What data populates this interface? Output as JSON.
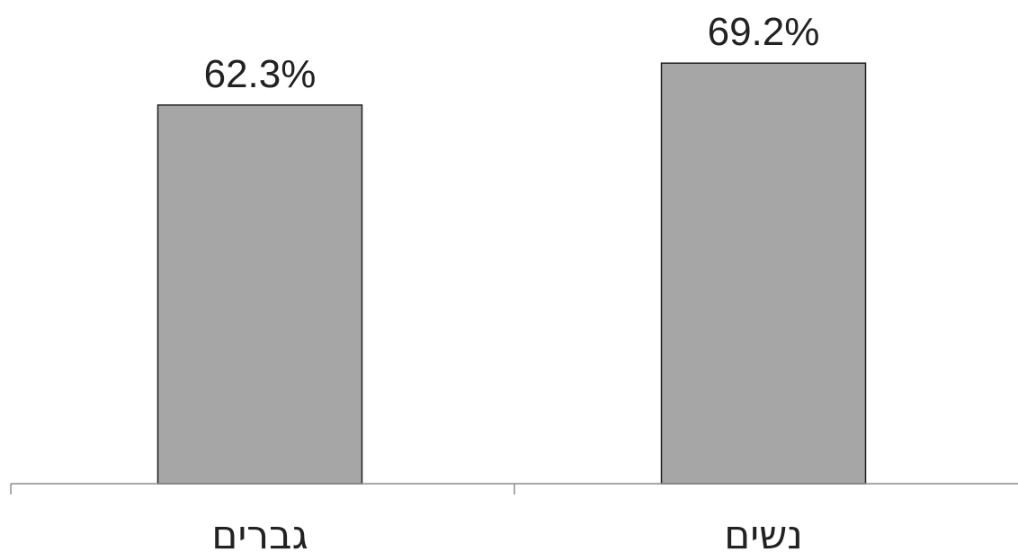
{
  "chart_data": {
    "type": "bar",
    "categories": [
      "גברים",
      "נשים"
    ],
    "values": [
      62.3,
      69.2
    ],
    "value_labels": [
      "62.3%",
      "69.2%"
    ],
    "title": "",
    "xlabel": "",
    "ylabel": "",
    "grid": false,
    "legend": "none",
    "bar_color": "#a6a6a6",
    "bar_edge_color": "#1f1f1f",
    "axis_color": "#8c8c8c"
  }
}
